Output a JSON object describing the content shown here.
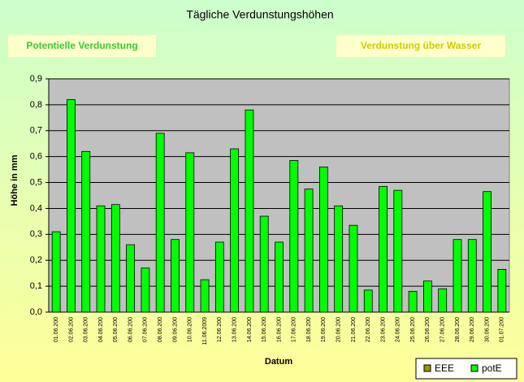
{
  "buttons": [
    "Potentielle Verdunstung",
    "Verdunstung über Wasser"
  ],
  "chart_data": {
    "type": "bar",
    "title": "Tägliche Verdunstungshöhen",
    "x_label": "Datum",
    "y_label": "Höhe in mm",
    "categories": [
      "01.06.200",
      "02.06.200",
      "03.06.200",
      "04.06.200",
      "05.06.200",
      "06.06.200",
      "07.06.200",
      "08.06.200",
      "09.06.200",
      "10.06.200",
      "11.06.2009",
      "12.06.200",
      "13.06.200",
      "14.06.200",
      "15.06.200",
      "16.06.200",
      "17.06.200",
      "18.06.200",
      "19.06.200",
      "20.06.200",
      "21.06.200",
      "22.06.200",
      "23.06.200",
      "24.06.200",
      "25.06.200",
      "26.06.200",
      "27.06.200",
      "28.06.200",
      "29.06.200",
      "30.06.200",
      "01.07.200"
    ],
    "series": [
      {
        "name": "EEE",
        "color": "#999900",
        "values": [
          null,
          null,
          null,
          null,
          null,
          null,
          null,
          null,
          null,
          null,
          null,
          null,
          null,
          null,
          null,
          null,
          null,
          null,
          null,
          null,
          null,
          null,
          null,
          null,
          null,
          null,
          null,
          null,
          null,
          null,
          null
        ]
      },
      {
        "name": "potE",
        "color": "#00ff00",
        "values": [
          0.31,
          0.82,
          0.62,
          0.41,
          0.415,
          0.26,
          0.17,
          0.69,
          0.28,
          0.615,
          0.125,
          0.27,
          0.63,
          0.78,
          0.37,
          0.27,
          0.585,
          0.475,
          0.56,
          0.41,
          0.335,
          0.085,
          0.485,
          0.47,
          0.08,
          0.12,
          0.09,
          0.28,
          0.28,
          0.465,
          0.165
        ]
      }
    ],
    "ylim": [
      0,
      0.9
    ],
    "yticks": [
      {
        "value": 0,
        "label": "0,0"
      },
      {
        "value": 0.1,
        "label": "0,1"
      },
      {
        "value": 0.2,
        "label": "0,2"
      },
      {
        "value": 0.3,
        "label": "0,3"
      },
      {
        "value": 0.4,
        "label": "0,4"
      },
      {
        "value": 0.5,
        "label": "0,5"
      },
      {
        "value": 0.6,
        "label": "0,6"
      },
      {
        "value": 0.7,
        "label": "0,7"
      },
      {
        "value": 0.8,
        "label": "0,8"
      },
      {
        "value": 0.9,
        "label": "0,9"
      }
    ],
    "grid": true,
    "legend": "bottom-right"
  }
}
